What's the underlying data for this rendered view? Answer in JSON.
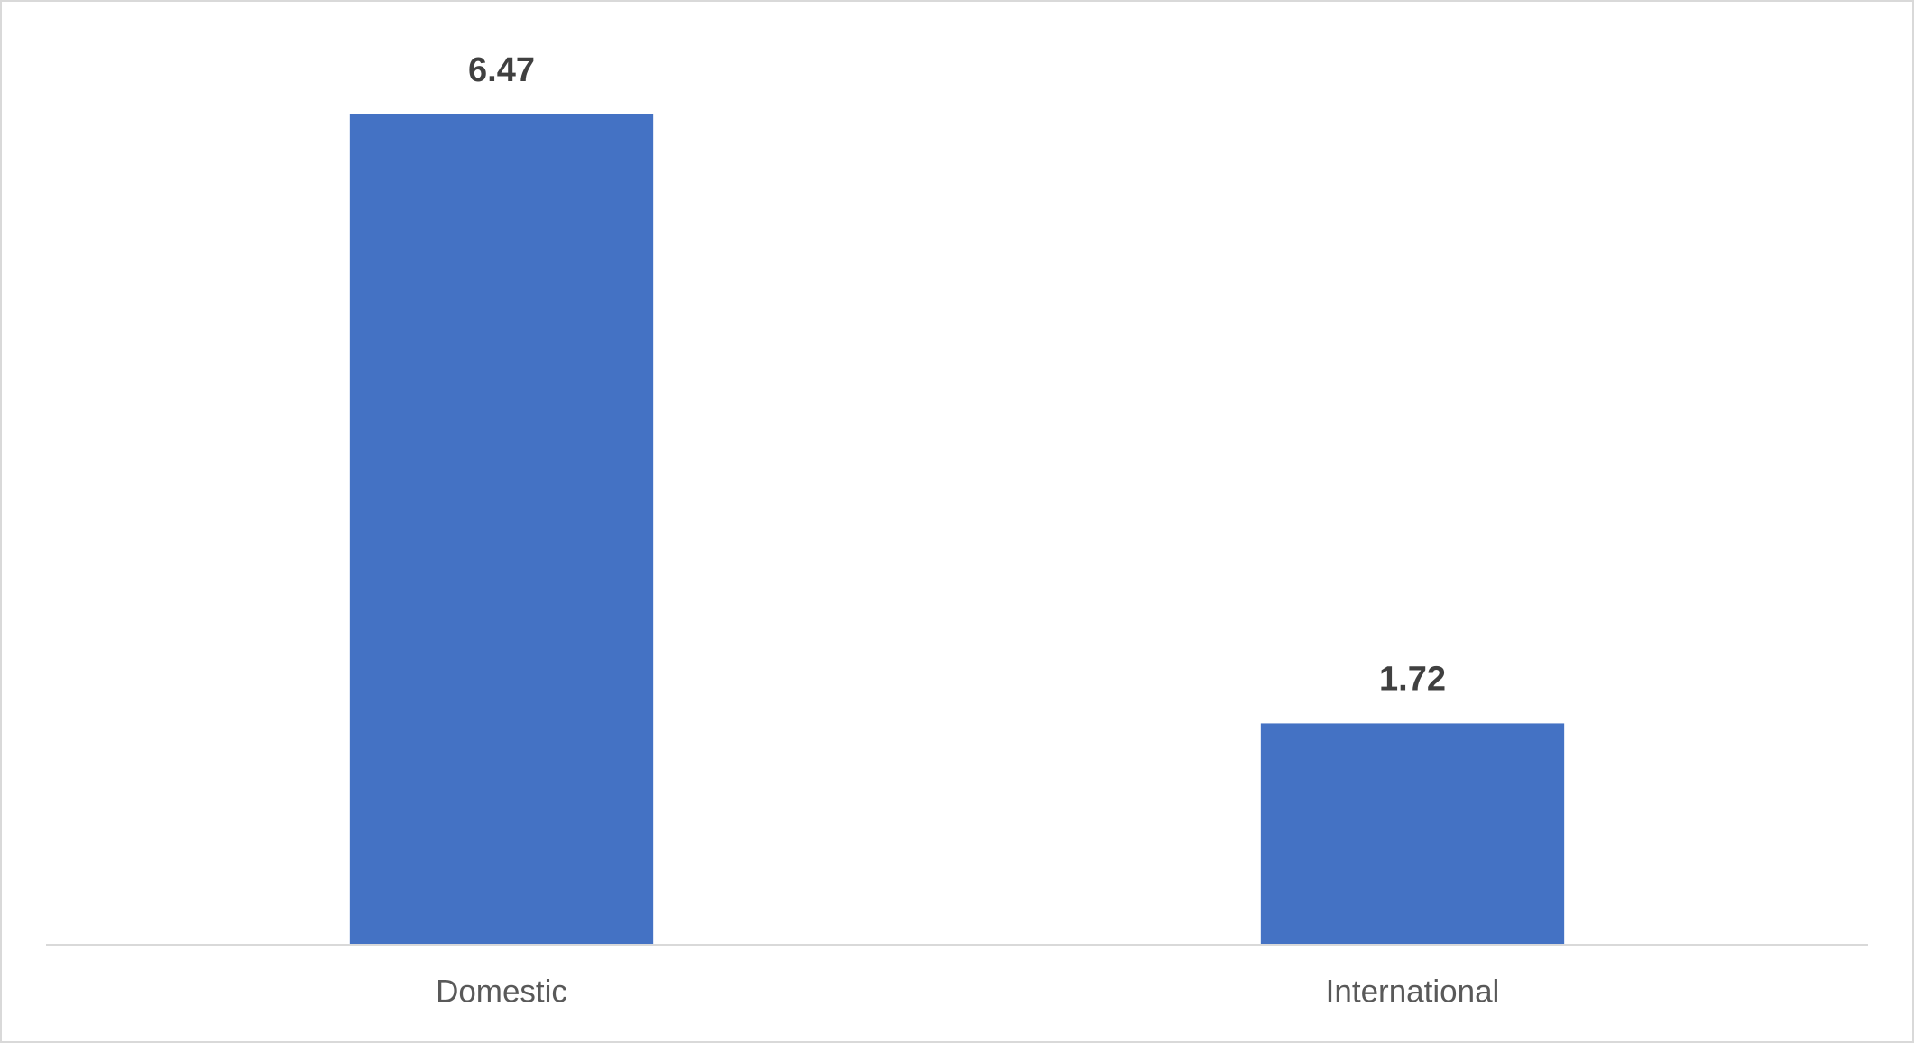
{
  "chart_data": {
    "type": "bar",
    "categories": [
      "Domestic",
      "International"
    ],
    "values": [
      6.47,
      1.72
    ],
    "color": "#4472c4",
    "grid": false
  }
}
